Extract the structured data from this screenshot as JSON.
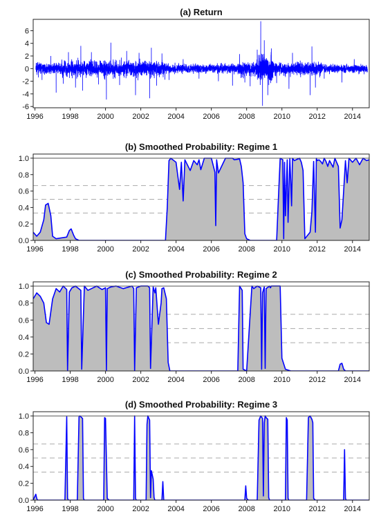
{
  "chart_data": [
    {
      "type": "line",
      "title": "(a) Return",
      "xlabel": "",
      "ylabel": "",
      "xlim": [
        1995.9,
        2014.95
      ],
      "ylim": [
        -6.2,
        7.8
      ],
      "xticks": [
        "1996",
        "1998",
        "2000",
        "2002",
        "2004",
        "2006",
        "2008",
        "2010",
        "2012",
        "2014"
      ],
      "yticks": [
        "-6",
        "-4",
        "-2",
        "0",
        "2",
        "4",
        "6"
      ],
      "grid": false,
      "line_color": "#0000ff",
      "spikes": [
        {
          "x": 1996.4,
          "y": -1.8
        },
        {
          "x": 1996.9,
          "y": 2.0
        },
        {
          "x": 1997.2,
          "y": -3.8
        },
        {
          "x": 1997.6,
          "y": -2.4
        },
        {
          "x": 1997.9,
          "y": 2.6
        },
        {
          "x": 1998.3,
          "y": -3.0
        },
        {
          "x": 1998.6,
          "y": 3.6
        },
        {
          "x": 1998.7,
          "y": -3.5
        },
        {
          "x": 1999.2,
          "y": 2.6
        },
        {
          "x": 1999.6,
          "y": -2.5
        },
        {
          "x": 2000.05,
          "y": -4.9
        },
        {
          "x": 2000.3,
          "y": 4.1
        },
        {
          "x": 2000.8,
          "y": -2.6
        },
        {
          "x": 2001.2,
          "y": 2.8
        },
        {
          "x": 2001.7,
          "y": -4.2
        },
        {
          "x": 2001.9,
          "y": 2.5
        },
        {
          "x": 2002.5,
          "y": -4.7
        },
        {
          "x": 2002.6,
          "y": 3.3
        },
        {
          "x": 2002.9,
          "y": -2.7
        },
        {
          "x": 2003.2,
          "y": 2.4
        },
        {
          "x": 2003.6,
          "y": -1.8
        },
        {
          "x": 2004.4,
          "y": 1.5
        },
        {
          "x": 2005.3,
          "y": -1.6
        },
        {
          "x": 2006.4,
          "y": -2.0
        },
        {
          "x": 2007.2,
          "y": -2.7
        },
        {
          "x": 2007.6,
          "y": 2.3
        },
        {
          "x": 2007.9,
          "y": -2.2
        },
        {
          "x": 2008.2,
          "y": -2.8
        },
        {
          "x": 2008.6,
          "y": 3.0
        },
        {
          "x": 2008.8,
          "y": 7.5
        },
        {
          "x": 2008.9,
          "y": -5.9
        },
        {
          "x": 2009.0,
          "y": 4.5
        },
        {
          "x": 2009.2,
          "y": -4.2
        },
        {
          "x": 2009.4,
          "y": 3.2
        },
        {
          "x": 2009.7,
          "y": -2.3
        },
        {
          "x": 2010.4,
          "y": -3.2
        },
        {
          "x": 2010.6,
          "y": 2.5
        },
        {
          "x": 2011.6,
          "y": -4.2
        },
        {
          "x": 2011.7,
          "y": 3.5
        },
        {
          "x": 2011.9,
          "y": -3.0
        },
        {
          "x": 2012.4,
          "y": -1.6
        },
        {
          "x": 2013.4,
          "y": -2.2
        },
        {
          "x": 2014.1,
          "y": 1.5
        }
      ]
    },
    {
      "type": "area",
      "title": "(b) Smoothed Probability: Regime 1",
      "xlabel": "",
      "ylabel": "",
      "xlim": [
        1995.9,
        2014.95
      ],
      "ylim": [
        0,
        1.05
      ],
      "xticks": [
        "1996",
        "1998",
        "2000",
        "2002",
        "2004",
        "2006",
        "2008",
        "2010",
        "2012",
        "2014"
      ],
      "yticks": [
        "0.0",
        "0.2",
        "0.4",
        "0.6",
        "0.8",
        "1.0"
      ],
      "dashed_lines": [
        0.333,
        0.5,
        0.667
      ],
      "line_color": "#0000ff",
      "fill_color": "#bdbdbd",
      "x": [
        1995.9,
        1996.1,
        1996.3,
        1996.5,
        1996.6,
        1996.75,
        1996.9,
        1997.0,
        1997.2,
        1997.8,
        1997.95,
        1998.05,
        1998.2,
        1998.3,
        1998.5,
        2003.4,
        2003.5,
        2003.6,
        2003.7,
        2004.0,
        2004.2,
        2004.3,
        2004.4,
        2004.5,
        2004.8,
        2005.0,
        2005.2,
        2005.3,
        2005.4,
        2005.6,
        2006.0,
        2006.2,
        2006.25,
        2006.3,
        2006.4,
        2006.8,
        2007.2,
        2007.3,
        2007.6,
        2007.7,
        2007.8,
        2007.9,
        2008.0,
        2008.2,
        2009.7,
        2009.8,
        2009.9,
        2010.05,
        2010.1,
        2010.15,
        2010.2,
        2010.3,
        2010.35,
        2010.45,
        2010.55,
        2010.6,
        2010.7,
        2011.0,
        2011.1,
        2011.2,
        2011.3,
        2011.6,
        2011.7,
        2011.8,
        2011.9,
        2011.95,
        2012.0,
        2012.1,
        2012.2,
        2012.3,
        2012.4,
        2012.5,
        2012.6,
        2012.7,
        2012.9,
        2013.0,
        2013.2,
        2013.3,
        2013.4,
        2013.5,
        2013.6,
        2013.7,
        2013.8,
        2014.0,
        2014.2,
        2014.4,
        2014.6,
        2014.8,
        2014.95
      ],
      "y": [
        0.1,
        0.05,
        0.1,
        0.25,
        0.43,
        0.45,
        0.3,
        0.05,
        0.02,
        0.04,
        0.12,
        0.14,
        0.06,
        0.02,
        0.0,
        0.0,
        0.4,
        0.97,
        1.0,
        0.95,
        0.62,
        0.95,
        0.48,
        0.98,
        0.85,
        0.97,
        0.92,
        0.98,
        0.86,
        1.0,
        1.0,
        0.83,
        0.18,
        0.98,
        0.82,
        1.0,
        1.0,
        0.98,
        0.99,
        0.9,
        0.7,
        0.08,
        0.02,
        0.0,
        0.0,
        0.5,
        1.0,
        0.98,
        0.02,
        0.95,
        0.3,
        0.98,
        0.22,
        1.0,
        0.42,
        1.0,
        0.97,
        1.0,
        0.95,
        0.85,
        0.02,
        0.1,
        0.35,
        0.96,
        0.1,
        1.0,
        0.97,
        0.98,
        0.96,
        0.93,
        1.0,
        0.96,
        0.9,
        0.97,
        0.89,
        1.0,
        0.9,
        0.15,
        0.25,
        0.6,
        0.97,
        0.7,
        1.0,
        0.95,
        1.0,
        0.92,
        1.0,
        0.97,
        0.98
      ]
    },
    {
      "type": "area",
      "title": "(c) Smoothed Probability: Regime 2",
      "xlabel": "",
      "ylabel": "",
      "xlim": [
        1995.9,
        2014.95
      ],
      "ylim": [
        0,
        1.05
      ],
      "xticks": [
        "1996",
        "1998",
        "2000",
        "2002",
        "2004",
        "2006",
        "2008",
        "2010",
        "2012",
        "2014"
      ],
      "yticks": [
        "0.0",
        "0.2",
        "0.4",
        "0.6",
        "0.8",
        "1.0"
      ],
      "dashed_lines": [
        0.333,
        0.5,
        0.667
      ],
      "line_color": "#0000ff",
      "fill_color": "#bdbdbd",
      "x": [
        1995.9,
        1996.1,
        1996.3,
        1996.5,
        1996.65,
        1996.8,
        1997.0,
        1997.2,
        1997.4,
        1997.6,
        1997.8,
        1997.85,
        1997.95,
        1998.1,
        1998.3,
        1998.6,
        1998.65,
        1998.8,
        1999.0,
        1999.5,
        1999.8,
        2000.0,
        2000.05,
        2000.1,
        2000.3,
        2000.6,
        2001.0,
        2001.5,
        2001.6,
        2001.65,
        2001.75,
        2002.0,
        2002.4,
        2002.5,
        2002.55,
        2002.7,
        2002.8,
        2002.85,
        2003.0,
        2003.15,
        2003.2,
        2003.3,
        2003.45,
        2003.55,
        2003.65,
        2004.0,
        2007.5,
        2007.55,
        2007.6,
        2007.75,
        2007.8,
        2008.0,
        2008.3,
        2008.4,
        2008.6,
        2008.8,
        2008.85,
        2008.9,
        2009.0,
        2009.05,
        2009.1,
        2009.3,
        2009.35,
        2009.4,
        2009.9,
        2010.0,
        2010.2,
        2010.5,
        2013.2,
        2013.3,
        2013.4,
        2013.5,
        2013.6,
        2014.95
      ],
      "y": [
        0.85,
        0.92,
        0.88,
        0.8,
        0.57,
        0.55,
        0.85,
        0.97,
        0.93,
        1.0,
        0.96,
        0.01,
        0.93,
        0.98,
        1.0,
        0.95,
        0.02,
        1.0,
        0.95,
        1.0,
        0.96,
        0.98,
        0.01,
        0.97,
        0.99,
        1.0,
        0.97,
        1.0,
        0.97,
        0.0,
        0.98,
        1.0,
        1.0,
        0.98,
        0.03,
        0.99,
        0.92,
        0.98,
        0.55,
        0.8,
        0.97,
        0.98,
        0.85,
        0.1,
        0.0,
        0.0,
        0.0,
        0.5,
        1.0,
        0.95,
        0.02,
        0.0,
        1.0,
        0.97,
        1.0,
        0.98,
        0.02,
        0.92,
        0.99,
        0.03,
        0.97,
        1.0,
        0.98,
        1.0,
        1.0,
        0.15,
        0.02,
        0.0,
        0.0,
        0.08,
        0.09,
        0.02,
        0.0,
        0.0
      ]
    },
    {
      "type": "area",
      "title": "(d) Smoothed Probability: Regime 3",
      "xlabel": "",
      "ylabel": "",
      "xlim": [
        1995.9,
        2014.95
      ],
      "ylim": [
        0,
        1.05
      ],
      "xticks": [
        "1996",
        "1998",
        "2000",
        "2002",
        "2004",
        "2006",
        "2008",
        "2010",
        "2012",
        "2014"
      ],
      "yticks": [
        "0.0",
        "0.2",
        "0.4",
        "0.6",
        "0.8",
        "1.0"
      ],
      "dashed_lines": [
        0.333,
        0.5,
        0.667
      ],
      "line_color": "#0000ff",
      "fill_color": "#bdbdbd",
      "x": [
        1995.9,
        1996.05,
        1996.1,
        1996.15,
        1996.3,
        1997.7,
        1997.8,
        1997.85,
        1997.9,
        1998.4,
        1998.5,
        1998.55,
        1998.7,
        1998.75,
        1998.8,
        1999.9,
        1999.95,
        2000.0,
        2000.1,
        2000.2,
        2001.6,
        2001.65,
        2001.7,
        2001.75,
        2002.3,
        2002.35,
        2002.4,
        2002.5,
        2002.55,
        2002.6,
        2002.7,
        2002.75,
        2002.8,
        2003.2,
        2003.25,
        2003.3,
        2007.9,
        2007.95,
        2008.0,
        2008.1,
        2008.6,
        2008.7,
        2008.8,
        2008.9,
        2008.95,
        2009.0,
        2009.05,
        2009.1,
        2009.2,
        2009.25,
        2009.3,
        2009.4,
        2010.2,
        2010.25,
        2010.3,
        2010.35,
        2010.4,
        2011.4,
        2011.5,
        2011.6,
        2011.7,
        2011.75,
        2011.8,
        2011.9,
        2012.0,
        2013.5,
        2013.55,
        2013.6,
        2013.65,
        2014.95
      ],
      "y": [
        0.0,
        0.07,
        0.02,
        0.0,
        0.0,
        0.0,
        0.99,
        0.02,
        0.0,
        0.0,
        0.99,
        1.0,
        0.97,
        0.02,
        0.0,
        0.0,
        0.98,
        0.97,
        0.02,
        0.0,
        0.0,
        1.0,
        0.02,
        0.0,
        0.0,
        0.9,
        1.0,
        0.95,
        0.03,
        0.35,
        0.25,
        0.03,
        0.0,
        0.0,
        0.22,
        0.0,
        0.0,
        0.17,
        0.02,
        0.0,
        0.0,
        0.95,
        1.0,
        0.97,
        0.05,
        0.92,
        1.0,
        0.98,
        0.96,
        0.03,
        0.0,
        0.0,
        0.0,
        0.98,
        0.95,
        0.02,
        0.0,
        0.0,
        0.98,
        1.0,
        0.96,
        0.92,
        0.02,
        0.0,
        0.0,
        0.0,
        0.6,
        0.02,
        0.0,
        0.0
      ]
    }
  ]
}
